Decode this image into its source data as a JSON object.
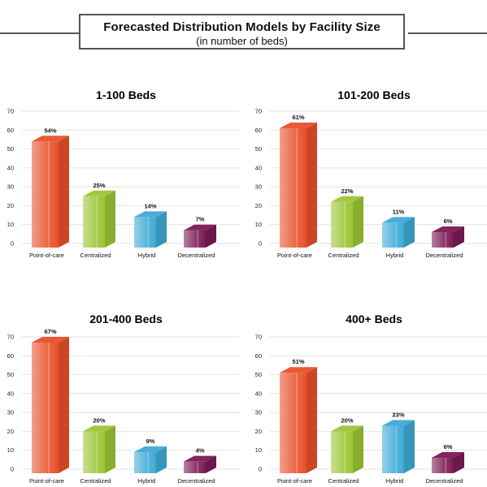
{
  "header": {
    "title": "Forecasted Distribution Models by Facility Size",
    "subtitle": "(in number of beds)"
  },
  "colors": {
    "Point-of-care": "#e8502a",
    "Centralized": "#9bc535",
    "Hybrid": "#3fa9d6",
    "Decentralized": "#7a1a52"
  },
  "chart_data": [
    {
      "type": "bar",
      "title": "1-100 Beds",
      "categories": [
        "Point-of-care",
        "Centralized",
        "Hybrid",
        "Decentralized"
      ],
      "values": [
        54,
        25,
        14,
        7
      ],
      "data_labels": [
        "54%",
        "25%",
        "14%",
        "7%"
      ],
      "yticks": [
        "0",
        "10",
        "20",
        "30",
        "40",
        "50",
        "60",
        "70"
      ],
      "ylim": [
        0,
        70
      ],
      "grid": true
    },
    {
      "type": "bar",
      "title": "101-200 Beds",
      "categories": [
        "Point-of-care",
        "Centralized",
        "Hybrid",
        "Decentralized"
      ],
      "values": [
        61,
        22,
        11,
        6
      ],
      "data_labels": [
        "61%",
        "22%",
        "11%",
        "6%"
      ],
      "yticks": [
        "0",
        "10",
        "20",
        "30",
        "40",
        "50",
        "60",
        "70"
      ],
      "ylim": [
        0,
        70
      ],
      "grid": true
    },
    {
      "type": "bar",
      "title": "201-400 Beds",
      "categories": [
        "Point-of-care",
        "Centralized",
        "Hybrid",
        "Decentralized"
      ],
      "values": [
        67,
        20,
        9,
        4
      ],
      "data_labels": [
        "67%",
        "20%",
        "9%",
        "4%"
      ],
      "yticks": [
        "0",
        "10",
        "20",
        "30",
        "40",
        "50",
        "60",
        "70"
      ],
      "ylim": [
        0,
        70
      ],
      "grid": true
    },
    {
      "type": "bar",
      "title": "400+ Beds",
      "categories": [
        "Point-of-care",
        "Centralized",
        "Hybrid",
        "Decentralized"
      ],
      "values": [
        51,
        20,
        23,
        6
      ],
      "data_labels": [
        "51%",
        "20%",
        "23%",
        "6%"
      ],
      "yticks": [
        "0",
        "10",
        "20",
        "30",
        "40",
        "50",
        "60",
        "70"
      ],
      "ylim": [
        0,
        70
      ],
      "grid": true
    }
  ]
}
